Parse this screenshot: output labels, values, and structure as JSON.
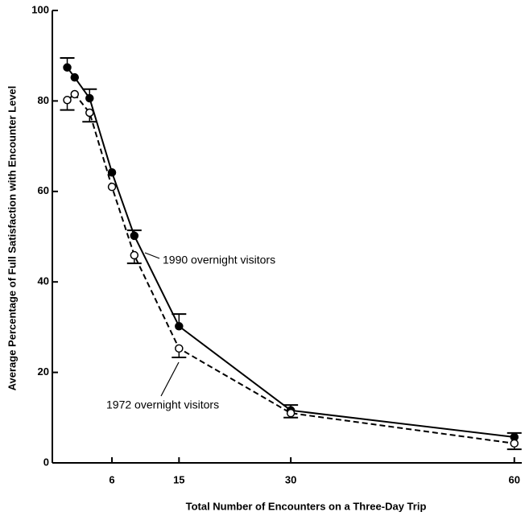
{
  "chart_data": {
    "type": "line",
    "x_label": "Total Number of Encounters on a Three-Day Trip",
    "y_label": "Average Percentage of Full Satisfaction with Encounter Level",
    "x": [
      0,
      1,
      3,
      6,
      9,
      15,
      30,
      60
    ],
    "series": [
      {
        "name": "1990 overnight visitors",
        "color": "#000000",
        "dashed": false,
        "marker": "filled",
        "values": [
          87.4,
          85.2,
          80.6,
          64.2,
          50.2,
          30.2,
          11.6,
          5.7
        ],
        "errors": [
          2.1,
          null,
          2.0,
          null,
          1.2,
          2.7,
          1.2,
          0.9
        ],
        "error_direction": "up"
      },
      {
        "name": "1972 overnight visitors",
        "color": "#000000",
        "dashed": true,
        "marker": "open",
        "values": [
          80.2,
          81.5,
          77.4,
          61.0,
          45.9,
          25.3,
          11.0,
          4.3
        ],
        "errors": [
          2.2,
          null,
          2.0,
          null,
          1.8,
          2.0,
          1.0,
          1.3
        ],
        "error_direction": "down"
      }
    ],
    "xlim": [
      -2,
      61
    ],
    "xticks": [
      6,
      15,
      30,
      60
    ],
    "ylim": [
      0,
      100
    ],
    "yticks": [
      0,
      20,
      40,
      60,
      80,
      100
    ]
  }
}
